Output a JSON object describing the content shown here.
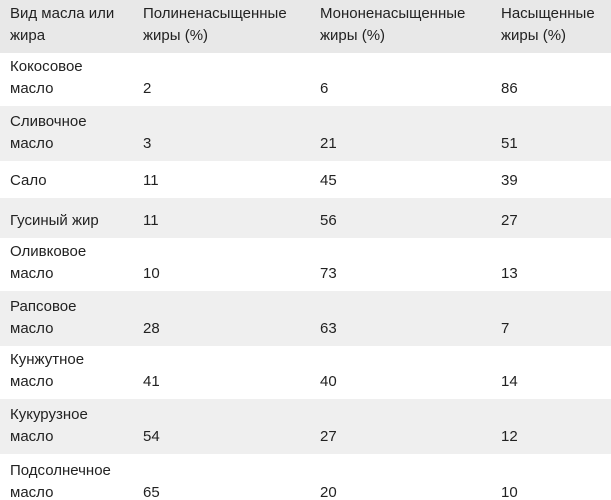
{
  "chart_data": {
    "type": "table",
    "columns": [
      "Вид масла или жира",
      "Полиненасыщенные жиры (%)",
      "Мононенасыщенные жиры (%)",
      "Насыщенные жиры (%)"
    ],
    "rows": [
      [
        "Кокосовое масло",
        "2",
        "6",
        "86"
      ],
      [
        "Сливочное масло",
        "3",
        "21",
        "51"
      ],
      [
        "Сало",
        "11",
        "45",
        "39"
      ],
      [
        "Гусиный жир",
        "11",
        "56",
        "27"
      ],
      [
        "Оливковое масло",
        "10",
        "73",
        "13"
      ],
      [
        "Рапсовое масло",
        "28",
        "63",
        "7"
      ],
      [
        "Кунжутное масло",
        "41",
        "40",
        "14"
      ],
      [
        "Кукурузное масло",
        "54",
        "27",
        "12"
      ],
      [
        "Подсолнечное масло",
        "65",
        "20",
        "10"
      ]
    ],
    "layout": {
      "zebra_striping": true,
      "grid": false,
      "legend_position": "none"
    }
  },
  "colors": {
    "header_bg": "#e8e8e8",
    "row_stripe_bg": "#efefef",
    "row_bg": "#ffffff",
    "text": "#222222"
  }
}
